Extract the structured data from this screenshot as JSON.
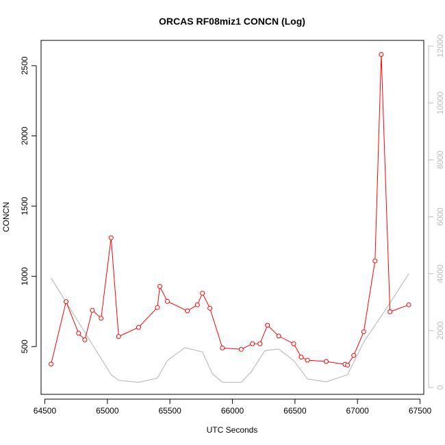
{
  "chart_data": {
    "type": "line",
    "title": "ORCAS RF08miz1 CONCN (Log)",
    "xlabel": "UTC Seconds",
    "ylabel": "CONCN",
    "xlim": [
      64470,
      67530
    ],
    "ylim": [
      160,
      2680
    ],
    "y2lim": [
      -240,
      12200
    ],
    "x_ticks": [
      64500,
      65000,
      65500,
      66000,
      66500,
      67000,
      67500
    ],
    "y_ticks": [
      500,
      1000,
      1500,
      2000,
      2500
    ],
    "y2_ticks": [
      0,
      2000,
      4000,
      6000,
      8000,
      10000,
      12000
    ],
    "grid": false,
    "colors": {
      "primary": "#ff0000",
      "secondary": "#bebebe",
      "axis": "#000000",
      "right_axis": "#bebebe"
    },
    "series": [
      {
        "axis": "left",
        "style": "line-with-circles",
        "x": [
          64550,
          64670,
          64770,
          64820,
          64880,
          64950,
          65030,
          65090,
          65250,
          65400,
          65420,
          65480,
          65640,
          65720,
          65760,
          65820,
          65920,
          66070,
          66160,
          66220,
          66280,
          66370,
          66490,
          66550,
          66600,
          66750,
          66900,
          66920,
          66970,
          67050,
          67140,
          67190,
          67260,
          67410
        ],
        "y": [
          375,
          820,
          595,
          548,
          758,
          702,
          1275,
          572,
          637,
          778,
          928,
          822,
          754,
          797,
          880,
          773,
          490,
          480,
          520,
          520,
          652,
          575,
          520,
          425,
          403,
          394,
          373,
          368,
          437,
          605,
          1110,
          2580,
          748,
          797
        ]
      },
      {
        "axis": "right",
        "style": "line",
        "x": [
          64550,
          65030,
          65090,
          65250,
          65400,
          65480,
          65620,
          65760,
          65840,
          65920,
          66070,
          66150,
          66260,
          66370,
          66490,
          66600,
          66750,
          66920,
          67050,
          67250,
          67410
        ],
        "y": [
          3850,
          450,
          250,
          180,
          330,
          950,
          1400,
          1250,
          480,
          180,
          180,
          550,
          1300,
          1350,
          950,
          300,
          200,
          450,
          1600,
          2900,
          4000
        ]
      }
    ]
  }
}
